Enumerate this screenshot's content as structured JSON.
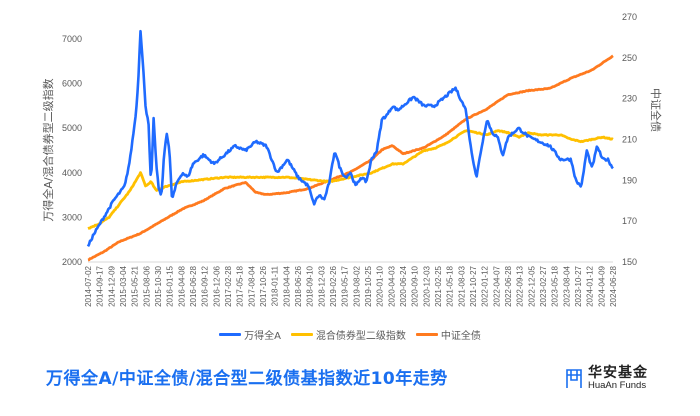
{
  "title": "万得全A/中证全债/混合型二级债基指数近10年走势",
  "logo": {
    "cn": "华安基金",
    "en": "HuaAn Funds",
    "icon": "huaan-logo-icon"
  },
  "colors": {
    "wind_a": "#1f6bff",
    "hybrid": "#ffc000",
    "csi_bond": "#ff7a1f",
    "title": "#1a6ff0"
  },
  "chart_data": {
    "type": "line",
    "title": "万得全A/中证全债/混合型二级债基指数近10年走势",
    "ylabel": "万得全A/混合债券型二级指数",
    "y2label": "中证全债",
    "ylim": [
      2000,
      7000
    ],
    "y2lim": [
      150,
      270
    ],
    "yticks": [
      2000,
      3000,
      4000,
      5000,
      6000,
      7000
    ],
    "y2ticks": [
      150,
      170,
      190,
      210,
      230,
      250,
      270
    ],
    "grid": false,
    "legend_position": "bottom",
    "xticks": [
      "2014-07-02",
      "2014-09-17",
      "2014-12-09",
      "2015-03-04",
      "2015-05-21",
      "2015-08-06",
      "2015-10-30",
      "2016-01-15",
      "2016-04-08",
      "2016-06-28",
      "2016-09-12",
      "2016-12-06",
      "2017-02-28",
      "2017-05-18",
      "2017-08-04",
      "2017-10-26",
      "2018-01-11",
      "2018-04-04",
      "2018-06-26",
      "2018-09-10",
      "2018-12-03",
      "2019-02-26",
      "2019-05-17",
      "2019-08-02",
      "2019-10-25",
      "2020-01-10",
      "2020-04-03",
      "2020-06-24",
      "2020-09-10",
      "2020-12-03",
      "2021-02-25",
      "2021-05-18",
      "2021-08-03",
      "2021-10-27",
      "2022-01-12",
      "2022-04-07",
      "2022-06-28",
      "2022-09-13",
      "2022-12-05",
      "2023-02-27",
      "2023-05-18",
      "2023-08-04",
      "2023-10-27",
      "2024-01-12",
      "2024-04-09",
      "2024-06-28"
    ],
    "series": [
      {
        "name": "万得全A",
        "axis": "left",
        "color": "#1f6bff",
        "t": [
          0,
          0.01,
          0.03,
          0.05,
          0.07,
          0.08,
          0.09,
          0.095,
          0.1,
          0.105,
          0.11,
          0.115,
          0.12,
          0.125,
          0.13,
          0.135,
          0.14,
          0.145,
          0.15,
          0.155,
          0.16,
          0.17,
          0.18,
          0.19,
          0.2,
          0.22,
          0.24,
          0.26,
          0.28,
          0.3,
          0.32,
          0.34,
          0.36,
          0.38,
          0.4,
          0.42,
          0.43,
          0.44,
          0.45,
          0.46,
          0.47,
          0.48,
          0.49,
          0.5,
          0.51,
          0.52,
          0.53,
          0.54,
          0.55,
          0.56,
          0.57,
          0.58,
          0.59,
          0.6,
          0.62,
          0.64,
          0.66,
          0.68,
          0.7,
          0.72,
          0.73,
          0.74,
          0.75,
          0.76,
          0.77,
          0.78,
          0.79,
          0.8,
          0.82,
          0.84,
          0.86,
          0.88,
          0.9,
          0.92,
          0.93,
          0.94,
          0.95,
          0.96,
          0.97,
          0.98,
          0.99,
          1.0
        ],
        "values": [
          2350,
          2600,
          3000,
          3400,
          3700,
          4300,
          5200,
          5900,
          7200,
          6400,
          5400,
          5200,
          3700,
          5200,
          4200,
          3600,
          3500,
          4400,
          4900,
          4500,
          3400,
          3800,
          4000,
          3900,
          4200,
          4400,
          4200,
          4400,
          4600,
          4500,
          4700,
          4600,
          4000,
          4300,
          3900,
          3700,
          3300,
          3500,
          3400,
          3800,
          4500,
          4100,
          3900,
          4000,
          3700,
          3900,
          3800,
          4300,
          4500,
          5200,
          5300,
          5500,
          5400,
          5500,
          5700,
          5500,
          5500,
          5700,
          5900,
          5400,
          4500,
          3900,
          4600,
          5200,
          4900,
          4800,
          4400,
          4800,
          5000,
          4800,
          4700,
          4600,
          4300,
          4300,
          3800,
          3700,
          4500,
          4100,
          4600,
          4300,
          4300,
          4100
        ]
      },
      {
        "name": "混合债券型二级指数",
        "axis": "left",
        "color": "#ffc000",
        "t": [
          0,
          0.02,
          0.04,
          0.06,
          0.08,
          0.09,
          0.1,
          0.11,
          0.12,
          0.13,
          0.15,
          0.18,
          0.22,
          0.26,
          0.3,
          0.34,
          0.38,
          0.42,
          0.46,
          0.5,
          0.54,
          0.56,
          0.58,
          0.6,
          0.62,
          0.64,
          0.66,
          0.68,
          0.7,
          0.72,
          0.74,
          0.76,
          0.78,
          0.8,
          0.82,
          0.84,
          0.86,
          0.88,
          0.9,
          0.92,
          0.94,
          0.96,
          0.98,
          1.0
        ],
        "values": [
          2750,
          2850,
          3000,
          3300,
          3600,
          3800,
          4000,
          3700,
          3800,
          3600,
          3700,
          3800,
          3850,
          3900,
          3900,
          3900,
          3900,
          3850,
          3800,
          3900,
          4000,
          4100,
          4200,
          4200,
          4350,
          4500,
          4550,
          4650,
          4800,
          4950,
          4900,
          4850,
          4950,
          4900,
          4800,
          4900,
          4850,
          4850,
          4850,
          4750,
          4700,
          4750,
          4800,
          4750
        ]
      },
      {
        "name": "中证全债",
        "axis": "right",
        "color": "#ff7a1f",
        "t": [
          0,
          0.03,
          0.06,
          0.1,
          0.14,
          0.18,
          0.22,
          0.26,
          0.3,
          0.32,
          0.34,
          0.38,
          0.42,
          0.46,
          0.5,
          0.54,
          0.56,
          0.58,
          0.6,
          0.64,
          0.68,
          0.72,
          0.76,
          0.8,
          0.84,
          0.88,
          0.92,
          0.96,
          1.0
        ],
        "values": [
          151,
          155,
          160,
          164,
          170,
          176,
          180,
          186,
          189,
          184,
          183,
          184,
          186,
          190,
          194,
          200,
          205,
          207,
          203,
          206,
          212,
          220,
          225,
          232,
          234,
          235,
          240,
          244,
          251
        ]
      }
    ]
  }
}
